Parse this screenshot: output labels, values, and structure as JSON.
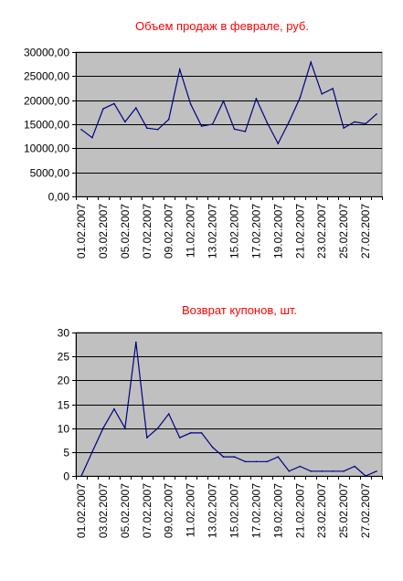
{
  "colors": {
    "plot_bg": "#c0c0c0",
    "line": "#000080",
    "title": "#ff0000",
    "grid": "#000000"
  },
  "chart_data": [
    {
      "type": "line",
      "title": "Объем продаж в феврале, руб.",
      "xlabel": "",
      "ylabel": "",
      "ylim": [
        0,
        30000
      ],
      "y_ticks": [
        0,
        5000,
        10000,
        15000,
        20000,
        25000,
        30000
      ],
      "y_tick_labels": [
        "0,00",
        "5000,00",
        "10000,00",
        "15000,00",
        "20000,00",
        "25000,00",
        "30000,00"
      ],
      "grid": true,
      "legend": "none",
      "x": [
        "01.02.2007",
        "02.02.2007",
        "03.02.2007",
        "04.02.2007",
        "05.02.2007",
        "06.02.2007",
        "07.02.2007",
        "08.02.2007",
        "09.02.2007",
        "10.02.2007",
        "11.02.2007",
        "12.02.2007",
        "13.02.2007",
        "14.02.2007",
        "15.02.2007",
        "16.02.2007",
        "17.02.2007",
        "18.02.2007",
        "19.02.2007",
        "20.02.2007",
        "21.02.2007",
        "22.02.2007",
        "23.02.2007",
        "24.02.2007",
        "25.02.2007",
        "26.02.2007",
        "27.02.2007",
        "28.02.2007"
      ],
      "x_tick_labels": [
        "01.02.2007",
        "03.02.2007",
        "05.02.2007",
        "07.02.2007",
        "09.02.2007",
        "11.02.2007",
        "13.02.2007",
        "15.02.2007",
        "17.02.2007",
        "19.02.2007",
        "21.02.2007",
        "23.02.2007",
        "25.02.2007",
        "27.02.2007"
      ],
      "values": [
        13900,
        12200,
        18200,
        19300,
        15500,
        18400,
        14200,
        13900,
        16000,
        26400,
        19200,
        14600,
        15000,
        19800,
        14000,
        13500,
        20300,
        15300,
        11000,
        15500,
        20500,
        27900,
        21300,
        22400,
        14200,
        15500,
        15100,
        17100
      ]
    },
    {
      "type": "line",
      "title": "Возврат купонов, шт.",
      "xlabel": "",
      "ylabel": "",
      "ylim": [
        0,
        30
      ],
      "y_ticks": [
        0,
        5,
        10,
        15,
        20,
        25,
        30
      ],
      "y_tick_labels": [
        "0",
        "5",
        "10",
        "15",
        "20",
        "25",
        "30"
      ],
      "grid": true,
      "legend": "none",
      "x": [
        "01.02.2007",
        "02.02.2007",
        "03.02.2007",
        "04.02.2007",
        "05.02.2007",
        "06.02.2007",
        "07.02.2007",
        "08.02.2007",
        "09.02.2007",
        "10.02.2007",
        "11.02.2007",
        "12.02.2007",
        "13.02.2007",
        "14.02.2007",
        "15.02.2007",
        "16.02.2007",
        "17.02.2007",
        "18.02.2007",
        "19.02.2007",
        "20.02.2007",
        "21.02.2007",
        "22.02.2007",
        "23.02.2007",
        "24.02.2007",
        "25.02.2007",
        "26.02.2007",
        "27.02.2007",
        "28.02.2007"
      ],
      "x_tick_labels": [
        "01.02.2007",
        "03.02.2007",
        "05.02.2007",
        "07.02.2007",
        "09.02.2007",
        "11.02.2007",
        "13.02.2007",
        "15.02.2007",
        "17.02.2007",
        "19.02.2007",
        "21.02.2007",
        "23.02.2007",
        "25.02.2007",
        "27.02.2007"
      ],
      "values": [
        0,
        5,
        10,
        14,
        10,
        28,
        8,
        10,
        13,
        8,
        9,
        9,
        6,
        4,
        4,
        3,
        3,
        3,
        4,
        1,
        2,
        1,
        1,
        1,
        1,
        2,
        0,
        1
      ]
    }
  ]
}
